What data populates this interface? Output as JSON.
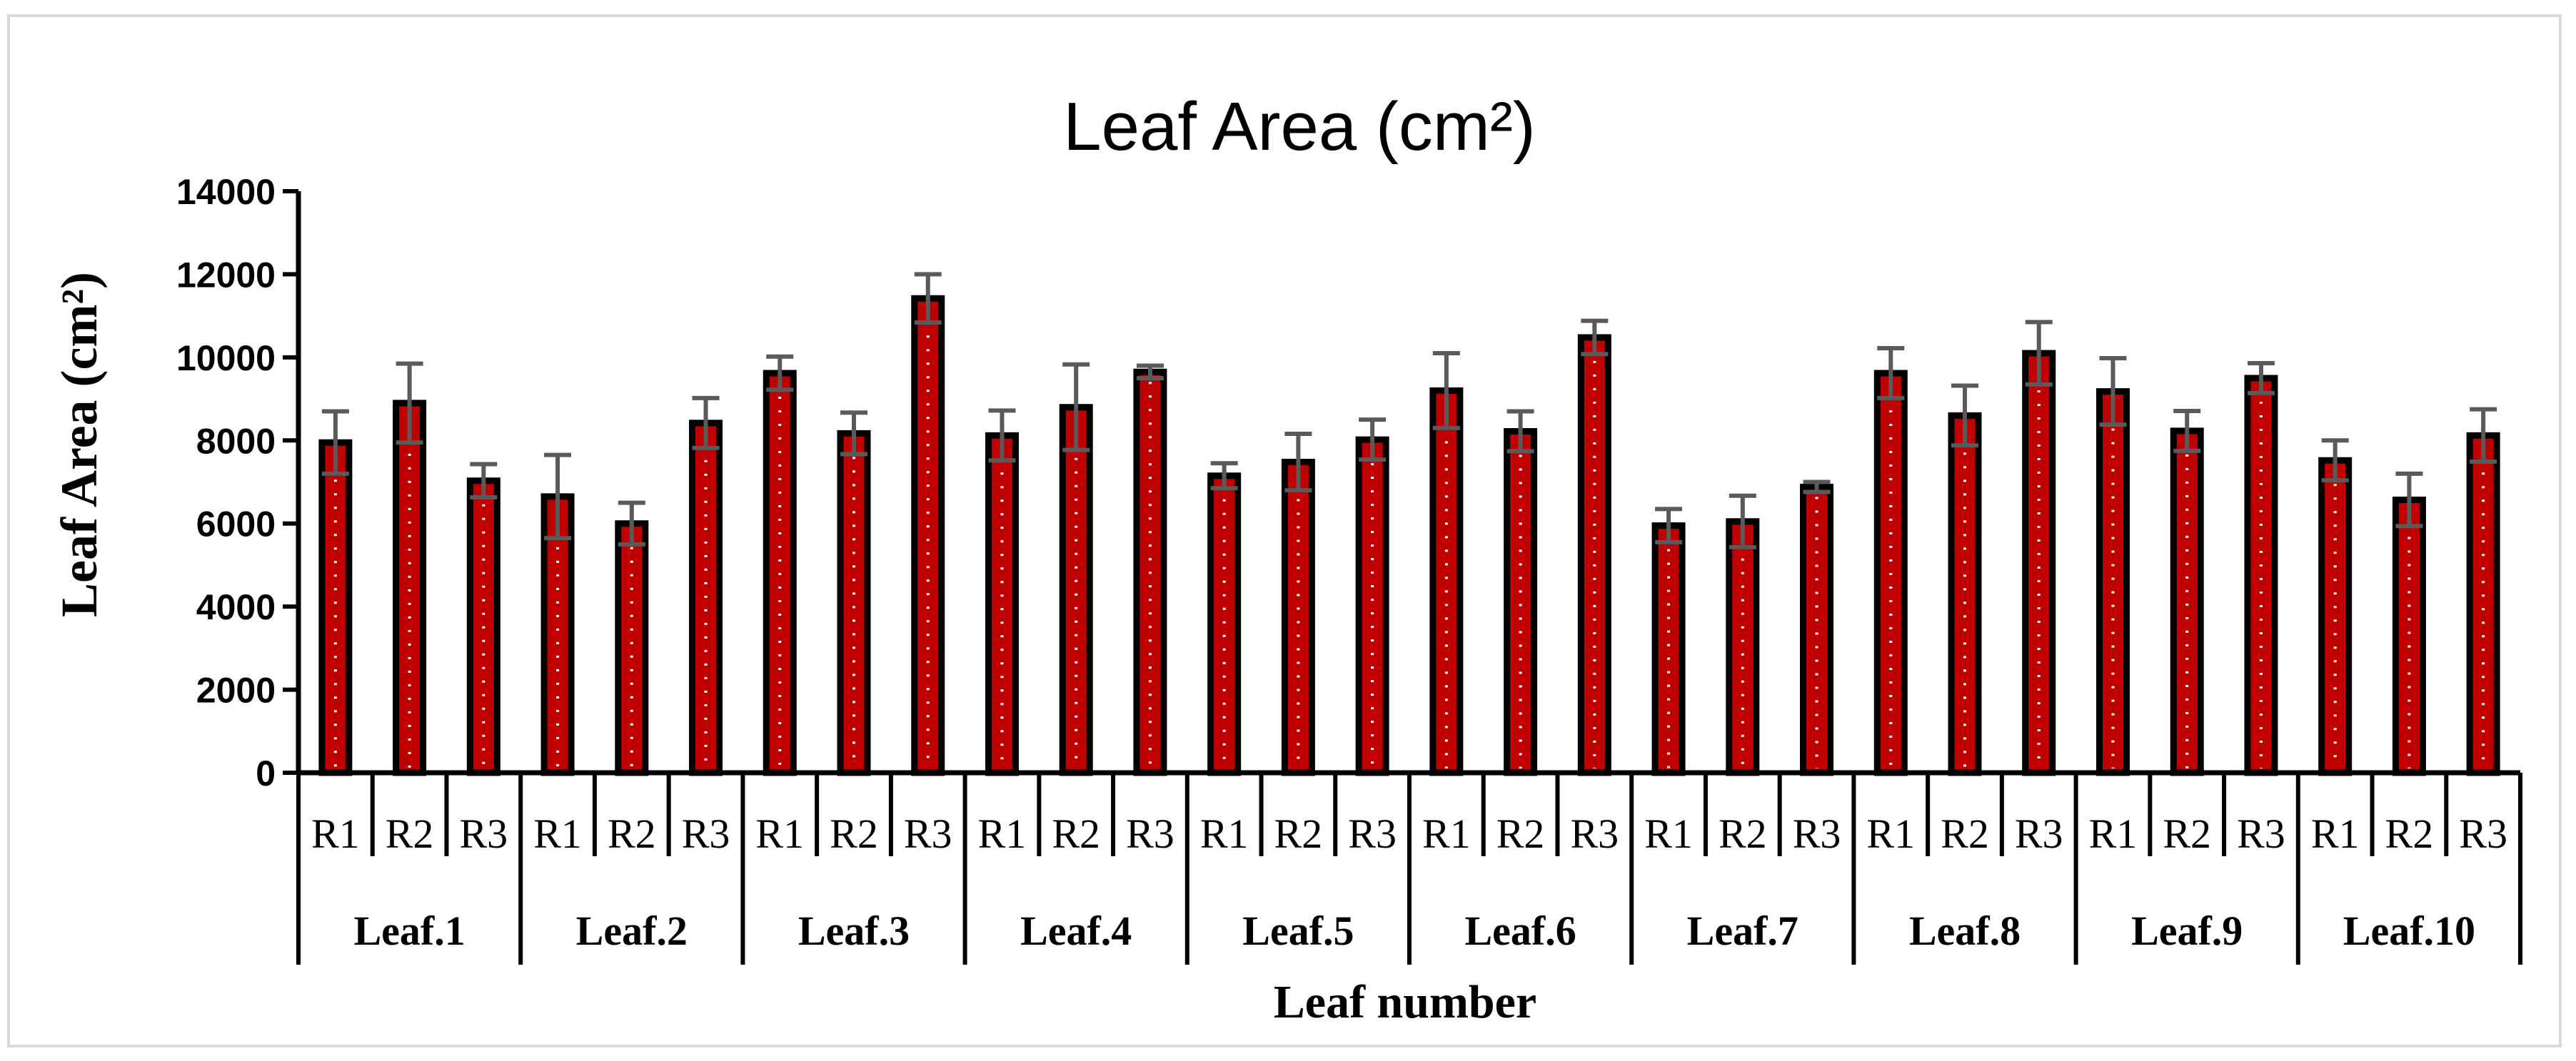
{
  "chart_data": {
    "type": "bar",
    "title": "Leaf Area (cm²)",
    "ylabel": "Leaf Area (cm²)",
    "xlabel": "Leaf number",
    "ylim": [
      0,
      14000
    ],
    "yticks": [
      0,
      2000,
      4000,
      6000,
      8000,
      10000,
      12000,
      14000
    ],
    "grid": false,
    "legend": "none",
    "bar_color": "#c00000",
    "bar_outline_color": "#000000",
    "error_bar_color": "#5a5a5a",
    "groups": [
      {
        "label": "Leaf.1",
        "categories": [
          "R1",
          "R2",
          "R3"
        ],
        "values": [
          7950,
          8900,
          7030
        ],
        "errors": [
          750,
          950,
          400
        ]
      },
      {
        "label": "Leaf.2",
        "categories": [
          "R1",
          "R2",
          "R3"
        ],
        "values": [
          6650,
          6000,
          8420
        ],
        "errors": [
          1000,
          500,
          600
        ]
      },
      {
        "label": "Leaf.3",
        "categories": [
          "R1",
          "R2",
          "R3"
        ],
        "values": [
          9620,
          8170,
          11420
        ],
        "errors": [
          400,
          500,
          580
        ]
      },
      {
        "label": "Leaf.4",
        "categories": [
          "R1",
          "R2",
          "R3"
        ],
        "values": [
          8120,
          8800,
          9650
        ],
        "errors": [
          600,
          1030,
          150
        ]
      },
      {
        "label": "Leaf.5",
        "categories": [
          "R1",
          "R2",
          "R3"
        ],
        "values": [
          7150,
          7480,
          8020
        ],
        "errors": [
          300,
          680,
          480
        ]
      },
      {
        "label": "Leaf.6",
        "categories": [
          "R1",
          "R2",
          "R3"
        ],
        "values": [
          9200,
          8220,
          10480
        ],
        "errors": [
          900,
          480,
          400
        ]
      },
      {
        "label": "Leaf.7",
        "categories": [
          "R1",
          "R2",
          "R3"
        ],
        "values": [
          5950,
          6050,
          6880
        ],
        "errors": [
          400,
          620,
          120
        ]
      },
      {
        "label": "Leaf.8",
        "categories": [
          "R1",
          "R2",
          "R3"
        ],
        "values": [
          9620,
          8600,
          10100
        ],
        "errors": [
          600,
          720,
          750
        ]
      },
      {
        "label": "Leaf.9",
        "categories": [
          "R1",
          "R2",
          "R3"
        ],
        "values": [
          9180,
          8230,
          9500
        ],
        "errors": [
          800,
          480,
          360
        ]
      },
      {
        "label": "Leaf.10",
        "categories": [
          "R1",
          "R2",
          "R3"
        ],
        "values": [
          7520,
          6570,
          8120
        ],
        "errors": [
          480,
          630,
          630
        ]
      }
    ]
  }
}
